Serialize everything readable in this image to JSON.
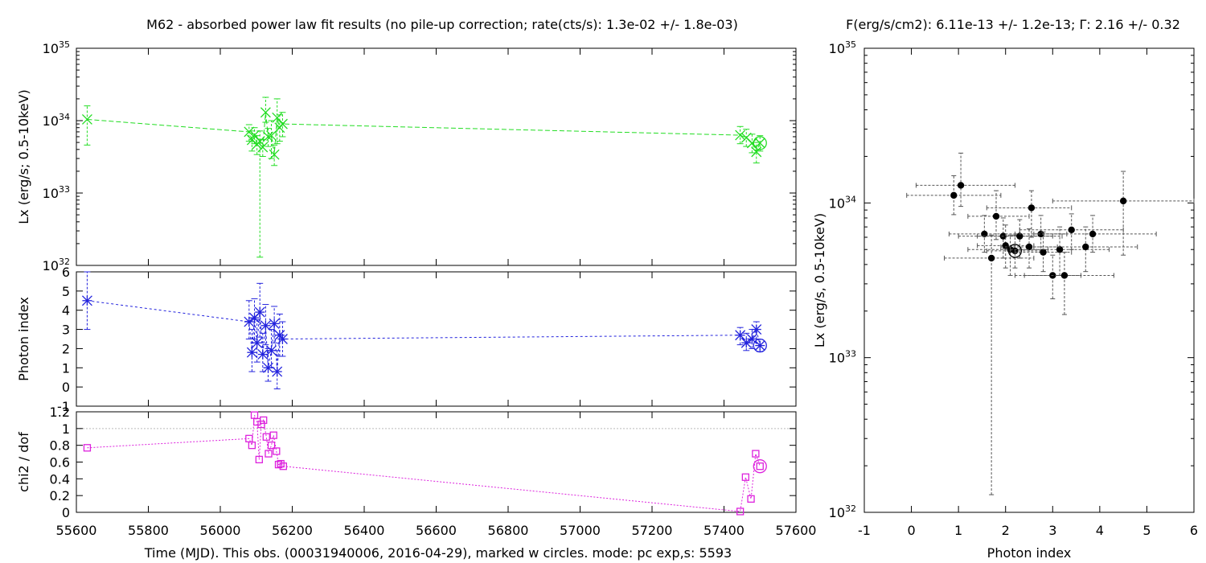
{
  "left_title": "M62  - absorbed power law fit results (no pile-up correction; rate(cts/s): 1.3e-02 +/- 1.8e-03)",
  "right_title": "F(erg/s/cm2): 6.11e-13 +/- 1.2e-13; Γ: 2.16 +/- 0.32",
  "time_axis_label": "Time (MJD). This obs. (00031940006, 2016-04-29), marked w circles. mode: pc exp,s: 5593",
  "colors": {
    "lx": "#22dd22",
    "gamma": "#2222dd",
    "chi2": "#dd22dd",
    "scatter": "#000000",
    "ref_line": "#bbbbbb"
  },
  "chart_data": [
    {
      "type": "line",
      "panel": "lx_vs_time",
      "ylabel": "Lx (erg/s; 0.5-10keV)",
      "yscale": "log",
      "xlim": [
        55600,
        57600
      ],
      "ylim": [
        1e+32,
        1e+35
      ],
      "xticks": [
        55600,
        55800,
        56000,
        56200,
        56400,
        56600,
        56800,
        57000,
        57200,
        57400,
        57600
      ],
      "yticks": [
        {
          "v": 1e+32,
          "label": "10^32"
        },
        {
          "v": 1e+33,
          "label": "10^33"
        },
        {
          "v": 1e+34,
          "label": "10^34"
        },
        {
          "v": 1e+35,
          "label": "10^35"
        }
      ],
      "marker": "x",
      "points": [
        {
          "x": 55630,
          "y": 1.04e+34,
          "lo": 4.6e+33,
          "hi": 1.6e+34
        },
        {
          "x": 56080,
          "y": 7e+33,
          "lo": 5.2e+33,
          "hi": 8.8e+33
        },
        {
          "x": 56088,
          "y": 5.4e+33,
          "lo": 3.8e+33,
          "hi": 7.2e+33
        },
        {
          "x": 56095,
          "y": 6.3e+33,
          "lo": 4.8e+33,
          "hi": 8e+33
        },
        {
          "x": 56102,
          "y": 4.7e+33,
          "lo": 3.4e+33,
          "hi": 6.2e+33
        },
        {
          "x": 56110,
          "y": 5.2e+33,
          "lo": 1.3e+32,
          "hi": 7.2e+33
        },
        {
          "x": 56118,
          "y": 4.3e+33,
          "lo": 3.2e+33,
          "hi": 5.5e+33
        },
        {
          "x": 56126,
          "y": 1.3e+34,
          "lo": 9.5e+33,
          "hi": 2.1e+34
        },
        {
          "x": 56133,
          "y": 6e+33,
          "lo": 4.4e+33,
          "hi": 7.8e+33
        },
        {
          "x": 56142,
          "y": 6.2e+33,
          "lo": 3e+33,
          "hi": 1e+34
        },
        {
          "x": 56150,
          "y": 3.4e+33,
          "lo": 2.4e+33,
          "hi": 4.6e+33
        },
        {
          "x": 56158,
          "y": 1.1e+34,
          "lo": 4.8e+33,
          "hi": 2e+34
        },
        {
          "x": 56165,
          "y": 8e+33,
          "lo": 5.2e+33,
          "hi": 1.2e+34
        },
        {
          "x": 56173,
          "y": 9e+33,
          "lo": 6e+33,
          "hi": 1.3e+34
        },
        {
          "x": 57445,
          "y": 6.3e+33,
          "lo": 4.8e+33,
          "hi": 8.3e+33
        },
        {
          "x": 57462,
          "y": 5.8e+33,
          "lo": 4.4e+33,
          "hi": 7.6e+33
        },
        {
          "x": 57478,
          "y": 4.9e+33,
          "lo": 3.6e+33,
          "hi": 6.5e+33
        },
        {
          "x": 57490,
          "y": 3.7e+33,
          "lo": 2.6e+33,
          "hi": 5e+33
        },
        {
          "x": 57500,
          "y": 4.9e+33,
          "lo": 3.8e+33,
          "hi": 6.2e+33,
          "current": true
        }
      ]
    },
    {
      "type": "line",
      "panel": "gamma_vs_time",
      "ylabel": "Photon index",
      "xlim": [
        55600,
        57600
      ],
      "ylim": [
        -1,
        6
      ],
      "yticks": [
        -1,
        0,
        1,
        2,
        3,
        4,
        5,
        6
      ],
      "marker": "star",
      "points": [
        {
          "x": 55630,
          "y": 4.5,
          "lo": 3.0,
          "hi": 6.0
        },
        {
          "x": 56080,
          "y": 3.4,
          "lo": 2.5,
          "hi": 4.5
        },
        {
          "x": 56088,
          "y": 1.8,
          "lo": 0.8,
          "hi": 3.0
        },
        {
          "x": 56095,
          "y": 3.6,
          "lo": 2.5,
          "hi": 4.6
        },
        {
          "x": 56102,
          "y": 2.3,
          "lo": 1.3,
          "hi": 3.5
        },
        {
          "x": 56110,
          "y": 3.9,
          "lo": 2.6,
          "hi": 5.4
        },
        {
          "x": 56118,
          "y": 1.7,
          "lo": 0.8,
          "hi": 2.8
        },
        {
          "x": 56126,
          "y": 3.2,
          "lo": 2.2,
          "hi": 4.3
        },
        {
          "x": 56133,
          "y": 1.0,
          "lo": 0.3,
          "hi": 2.0
        },
        {
          "x": 56142,
          "y": 1.9,
          "lo": 1.0,
          "hi": 3.0
        },
        {
          "x": 56150,
          "y": 3.3,
          "lo": 2.3,
          "hi": 4.2
        },
        {
          "x": 56158,
          "y": 0.8,
          "lo": -0.1,
          "hi": 1.9
        },
        {
          "x": 56165,
          "y": 2.7,
          "lo": 1.6,
          "hi": 3.8
        },
        {
          "x": 56173,
          "y": 2.5,
          "lo": 1.6,
          "hi": 3.4
        },
        {
          "x": 57445,
          "y": 2.7,
          "lo": 2.2,
          "hi": 3.1
        },
        {
          "x": 57462,
          "y": 2.3,
          "lo": 1.9,
          "hi": 2.8
        },
        {
          "x": 57478,
          "y": 2.5,
          "lo": 2.0,
          "hi": 3.0
        },
        {
          "x": 57490,
          "y": 3.0,
          "lo": 2.5,
          "hi": 3.4
        },
        {
          "x": 57500,
          "y": 2.16,
          "lo": 1.84,
          "hi": 2.48,
          "current": true
        }
      ]
    },
    {
      "type": "line",
      "panel": "chi2_vs_time",
      "ylabel": "chi2 / dof",
      "xlim": [
        55600,
        57600
      ],
      "ylim": [
        0,
        1.2
      ],
      "yticks": [
        0,
        0.2,
        0.4,
        0.6,
        0.8,
        1,
        1.2
      ],
      "reference_line": 1,
      "marker": "square",
      "points": [
        {
          "x": 55630,
          "y": 0.77
        },
        {
          "x": 56080,
          "y": 0.88
        },
        {
          "x": 56088,
          "y": 0.8
        },
        {
          "x": 56095,
          "y": 1.16
        },
        {
          "x": 56102,
          "y": 1.08
        },
        {
          "x": 56108,
          "y": 0.63
        },
        {
          "x": 56114,
          "y": 1.05
        },
        {
          "x": 56120,
          "y": 1.1
        },
        {
          "x": 56128,
          "y": 0.9
        },
        {
          "x": 56134,
          "y": 0.7
        },
        {
          "x": 56142,
          "y": 0.8
        },
        {
          "x": 56148,
          "y": 0.92
        },
        {
          "x": 56156,
          "y": 0.73
        },
        {
          "x": 56162,
          "y": 0.57
        },
        {
          "x": 56168,
          "y": 0.58
        },
        {
          "x": 56175,
          "y": 0.55
        },
        {
          "x": 57445,
          "y": 0.01
        },
        {
          "x": 57460,
          "y": 0.42
        },
        {
          "x": 57475,
          "y": 0.16
        },
        {
          "x": 57488,
          "y": 0.7
        },
        {
          "x": 57500,
          "y": 0.55,
          "current": true
        }
      ]
    },
    {
      "type": "scatter",
      "panel": "lx_vs_gamma",
      "xlabel": "Photon index",
      "ylabel": "Lx (erg/s, 0.5-10keV)",
      "yscale": "log",
      "xlim": [
        -1,
        6
      ],
      "ylim": [
        1e+32,
        1e+35
      ],
      "xticks": [
        -1,
        0,
        1,
        2,
        3,
        4,
        5,
        6
      ],
      "yticks": [
        {
          "v": 1e+32,
          "label": "10^32"
        },
        {
          "v": 1e+33,
          "label": "10^33"
        },
        {
          "v": 1e+34,
          "label": "10^34"
        },
        {
          "v": 1e+35,
          "label": "10^35"
        }
      ],
      "points": [
        {
          "x": 0.9,
          "y": 1.12e+34,
          "xlo": -0.1,
          "xhi": 1.9,
          "ylo": 8.4e+33,
          "yhi": 1.5e+34
        },
        {
          "x": 1.05,
          "y": 1.3e+34,
          "xlo": 0.1,
          "xhi": 2.2,
          "ylo": 9.5e+33,
          "yhi": 2.1e+34
        },
        {
          "x": 1.55,
          "y": 6.3e+33,
          "xlo": 0.8,
          "xhi": 2.3,
          "ylo": 4.8e+33,
          "yhi": 8.3e+33
        },
        {
          "x": 1.7,
          "y": 4.4e+33,
          "xlo": 0.7,
          "xhi": 2.6,
          "ylo": 1.3e+32,
          "yhi": 6.2e+33
        },
        {
          "x": 1.8,
          "y": 8.2e+33,
          "xlo": 1.2,
          "xhi": 2.5,
          "ylo": 5.8e+33,
          "yhi": 1.2e+34
        },
        {
          "x": 1.95,
          "y": 6.1e+33,
          "xlo": 1.0,
          "xhi": 3.0,
          "ylo": 4.4e+33,
          "yhi": 8e+33
        },
        {
          "x": 2.0,
          "y": 5.3e+33,
          "xlo": 1.4,
          "xhi": 2.6,
          "ylo": 3.8e+33,
          "yhi": 7.2e+33
        },
        {
          "x": 2.1,
          "y": 5e+33,
          "xlo": 1.2,
          "xhi": 2.9,
          "ylo": 3.4e+33,
          "yhi": 6.2e+33
        },
        {
          "x": 2.2,
          "y": 4.9e+33,
          "xlo": 1.6,
          "xhi": 2.8,
          "ylo": 3.8e+33,
          "yhi": 6.2e+33,
          "current": true
        },
        {
          "x": 2.3,
          "y": 6.1e+33,
          "xlo": 1.4,
          "xhi": 3.2,
          "ylo": 4.4e+33,
          "yhi": 7.8e+33
        },
        {
          "x": 2.5,
          "y": 5.2e+33,
          "xlo": 1.9,
          "xhi": 3.1,
          "ylo": 3.8e+33,
          "yhi": 6.8e+33
        },
        {
          "x": 2.55,
          "y": 9.3e+33,
          "xlo": 1.6,
          "xhi": 3.4,
          "ylo": 6e+33,
          "yhi": 1.2e+34
        },
        {
          "x": 2.75,
          "y": 6.3e+33,
          "xlo": 2.2,
          "xhi": 3.3,
          "ylo": 4.8e+33,
          "yhi": 8.3e+33
        },
        {
          "x": 2.8,
          "y": 4.8e+33,
          "xlo": 2.2,
          "xhi": 3.4,
          "ylo": 3.6e+33,
          "yhi": 6.5e+33
        },
        {
          "x": 3.0,
          "y": 3.4e+33,
          "xlo": 2.4,
          "xhi": 3.6,
          "ylo": 2.4e+33,
          "yhi": 4.6e+33
        },
        {
          "x": 3.15,
          "y": 5e+33,
          "xlo": 2.1,
          "xhi": 4.2,
          "ylo": 3.4e+33,
          "yhi": 7e+33
        },
        {
          "x": 3.25,
          "y": 3.4e+33,
          "xlo": 2.2,
          "xhi": 4.3,
          "ylo": 1.9e+33,
          "yhi": 4.8e+33
        },
        {
          "x": 3.4,
          "y": 6.7e+33,
          "xlo": 2.3,
          "xhi": 4.5,
          "ylo": 5e+33,
          "yhi": 8.5e+33
        },
        {
          "x": 3.7,
          "y": 5.2e+33,
          "xlo": 2.6,
          "xhi": 4.8,
          "ylo": 3.6e+33,
          "yhi": 7e+33
        },
        {
          "x": 3.85,
          "y": 6.3e+33,
          "xlo": 2.6,
          "xhi": 5.2,
          "ylo": 4.8e+33,
          "yhi": 8.3e+33
        },
        {
          "x": 4.5,
          "y": 1.03e+34,
          "xlo": 3.0,
          "xhi": 6.0,
          "ylo": 4.6e+33,
          "yhi": 1.6e+34
        }
      ]
    }
  ]
}
